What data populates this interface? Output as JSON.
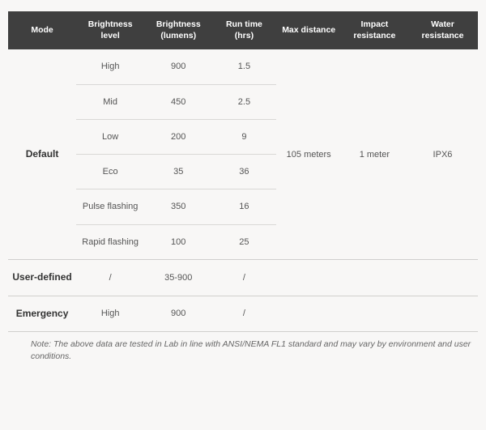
{
  "columns": [
    "Mode",
    "Brightness level",
    "Brightness (lumens)",
    "Run time (hrs)",
    "Max distance",
    "Impact resistance",
    "Water resistance"
  ],
  "shared": {
    "max_distance": "105 meters",
    "impact_resistance": "1 meter",
    "water_resistance": "IPX6"
  },
  "groups": [
    {
      "mode": "Default",
      "rows": [
        {
          "level": "High",
          "lumens": "900",
          "runtime": "1.5"
        },
        {
          "level": "Mid",
          "lumens": "450",
          "runtime": "2.5"
        },
        {
          "level": "Low",
          "lumens": "200",
          "runtime": "9"
        },
        {
          "level": "Eco",
          "lumens": "35",
          "runtime": "36"
        },
        {
          "level": "Pulse flashing",
          "lumens": "350",
          "runtime": "16"
        },
        {
          "level": "Rapid flashing",
          "lumens": "100",
          "runtime": "25"
        }
      ]
    },
    {
      "mode": "User-defined",
      "rows": [
        {
          "level": "/",
          "lumens": "35-900",
          "runtime": "/"
        }
      ]
    },
    {
      "mode": "Emergency",
      "rows": [
        {
          "level": "High",
          "lumens": "900",
          "runtime": "/"
        }
      ]
    }
  ],
  "note": "Note: The above data are tested in Lab in line with ANSI/NEMA FL1 standard and may vary by environment and user conditions.",
  "style": {
    "header_bg": "#3f3f3f",
    "header_fg": "#ffffff",
    "row_border": "#d9d8d6",
    "group_border": "#d0cfcd",
    "page_bg": "#f8f7f6",
    "body_text": "#555555",
    "mode_text": "#333333",
    "note_text": "#666666",
    "header_fontsize_pt": 8,
    "body_fontsize_pt": 8.5,
    "mode_fontsize_pt": 9,
    "note_fontsize_pt": 8
  }
}
